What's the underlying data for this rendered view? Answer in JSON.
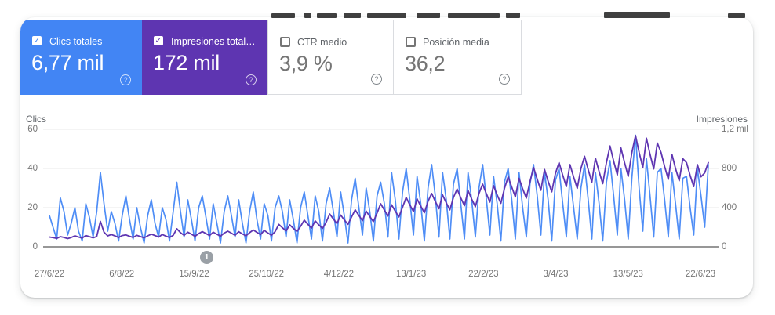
{
  "icons": {
    "checkmark": "✓",
    "help": "?"
  },
  "cards": [
    {
      "label": "Clics totales",
      "value": "6,77 mil",
      "checked": true,
      "accent": "#4285f4"
    },
    {
      "label": "Impresiones total…",
      "value": "172 mil",
      "checked": true,
      "accent": "#5e35b1"
    },
    {
      "label": "CTR medio",
      "value": "3,9 %",
      "checked": false,
      "accent": ""
    },
    {
      "label": "Posición media",
      "value": "36,2",
      "checked": false,
      "accent": ""
    }
  ],
  "chart": {
    "left_axis_title": "Clics",
    "right_axis_title": "Impresiones",
    "left_ticks": [
      "60",
      "40",
      "20",
      "0"
    ],
    "right_ticks": [
      "1,2 mil",
      "800",
      "400",
      "0"
    ],
    "annotation_badge": "1"
  },
  "chart_data": {
    "type": "line",
    "title": "",
    "date_range": {
      "start": "27/6/22",
      "end": "22/6/23"
    },
    "x_labels": [
      "27/6/22",
      "6/8/22",
      "15/9/22",
      "25/10/22",
      "4/12/22",
      "13/1/23",
      "22/2/23",
      "3/4/23",
      "13/5/23",
      "22/6/23"
    ],
    "left_axis": {
      "title": "Clics",
      "range": [
        0,
        60
      ],
      "ticks": [
        0,
        20,
        40,
        60
      ]
    },
    "right_axis": {
      "title": "Impresiones",
      "range": [
        0,
        1200
      ],
      "ticks": [
        0,
        400,
        800,
        1200
      ]
    },
    "grid": "horizontal",
    "legend_position": "none",
    "series": [
      {
        "name": "Clics totales",
        "axis": "left",
        "color": "#4e8df6",
        "total": "6,77 mil",
        "values": [
          16,
          10,
          4,
          25,
          18,
          6,
          12,
          20,
          8,
          3,
          22,
          15,
          5,
          18,
          38,
          22,
          8,
          18,
          12,
          3,
          16,
          26,
          14,
          4,
          20,
          10,
          2,
          16,
          24,
          12,
          5,
          20,
          14,
          3,
          18,
          33,
          18,
          5,
          24,
          14,
          3,
          20,
          26,
          15,
          4,
          22,
          12,
          2,
          18,
          26,
          16,
          5,
          24,
          12,
          2,
          18,
          28,
          14,
          4,
          22,
          16,
          3,
          20,
          26,
          18,
          5,
          24,
          14,
          2,
          20,
          28,
          16,
          4,
          26,
          18,
          3,
          22,
          30,
          18,
          5,
          28,
          16,
          2,
          24,
          35,
          20,
          6,
          30,
          18,
          3,
          26,
          33,
          22,
          5,
          38,
          24,
          4,
          28,
          40,
          24,
          6,
          36,
          22,
          3,
          30,
          42,
          26,
          5,
          38,
          24,
          4,
          32,
          40,
          22,
          4,
          38,
          24,
          5,
          30,
          42,
          25,
          6,
          36,
          22,
          3,
          33,
          40,
          24,
          4,
          38,
          20,
          5,
          32,
          42,
          26,
          6,
          38,
          24,
          3,
          34,
          40,
          22,
          5,
          36,
          20,
          4,
          30,
          42,
          24,
          4,
          38,
          22,
          3,
          33,
          44,
          26,
          6,
          40,
          24,
          4,
          35,
          57,
          30,
          8,
          45,
          26,
          5,
          38,
          40,
          24,
          5,
          38,
          22,
          4,
          35,
          36,
          20,
          6,
          40,
          26,
          10,
          42
        ]
      },
      {
        "name": "Impresiones totales",
        "axis": "right",
        "color": "#5e35b1",
        "total": "172 mil",
        "values": [
          100,
          94,
          86,
          104,
          96,
          84,
          95,
          112,
          100,
          90,
          115,
          104,
          92,
          106,
          260,
          150,
          112,
          126,
          112,
          95,
          115,
          122,
          108,
          96,
          118,
          105,
          92,
          112,
          130,
          115,
          100,
          126,
          110,
          96,
          118,
          185,
          145,
          118,
          150,
          130,
          108,
          135,
          155,
          135,
          115,
          150,
          128,
          110,
          140,
          160,
          140,
          118,
          155,
          132,
          112,
          145,
          172,
          148,
          125,
          168,
          142,
          118,
          155,
          230,
          195,
          162,
          225,
          190,
          158,
          210,
          272,
          230,
          192,
          265,
          225,
          188,
          250,
          335,
          285,
          238,
          325,
          275,
          230,
          305,
          378,
          320,
          268,
          365,
          310,
          258,
          345,
          440,
          375,
          315,
          430,
          365,
          305,
          405,
          505,
          430,
          360,
          490,
          415,
          348,
          465,
          545,
          465,
          390,
          530,
          450,
          378,
          505,
          590,
          500,
          420,
          575,
          488,
          410,
          545,
          640,
          545,
          458,
          625,
          530,
          445,
          595,
          715,
          610,
          510,
          700,
          592,
          498,
          665,
          810,
          690,
          578,
          790,
          670,
          562,
          750,
          860,
          732,
          615,
          840,
          712,
          598,
          800,
          925,
          788,
          660,
          905,
          768,
          645,
          860,
          1030,
          875,
          735,
          1010,
          858,
          720,
          960,
          1135,
          965,
          810,
          1110,
          945,
          795,
          1060,
          965,
          820,
          690,
          945,
          800,
          675,
          900,
          860,
          730,
          615,
          840,
          715,
          755,
          860
        ]
      }
    ]
  }
}
